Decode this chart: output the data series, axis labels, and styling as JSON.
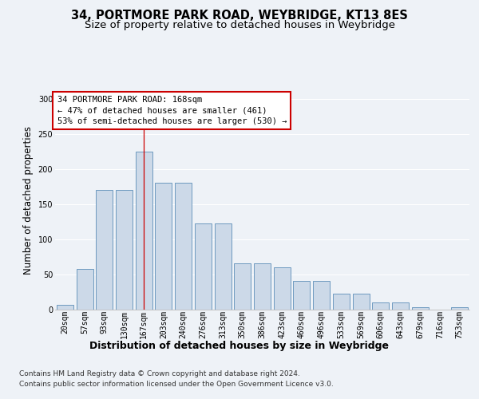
{
  "title1": "34, PORTMORE PARK ROAD, WEYBRIDGE, KT13 8ES",
  "title2": "Size of property relative to detached houses in Weybridge",
  "xlabel": "Distribution of detached houses by size in Weybridge",
  "ylabel": "Number of detached properties",
  "bar_labels": [
    "20sqm",
    "57sqm",
    "93sqm",
    "130sqm",
    "167sqm",
    "203sqm",
    "240sqm",
    "276sqm",
    "313sqm",
    "350sqm",
    "386sqm",
    "423sqm",
    "460sqm",
    "496sqm",
    "533sqm",
    "569sqm",
    "606sqm",
    "643sqm",
    "679sqm",
    "716sqm",
    "753sqm"
  ],
  "bar_values": [
    6,
    57,
    170,
    170,
    225,
    180,
    180,
    122,
    122,
    65,
    65,
    60,
    40,
    40,
    22,
    22,
    10,
    10,
    3,
    0,
    3
  ],
  "bar_color": "#ccd9e8",
  "bar_edge_color": "#5b8db8",
  "highlight_bar_index": 4,
  "highlight_line_color": "#cc0000",
  "ylim": [
    0,
    310
  ],
  "yticks": [
    0,
    50,
    100,
    150,
    200,
    250,
    300
  ],
  "annotation_text": "34 PORTMORE PARK ROAD: 168sqm\n← 47% of detached houses are smaller (461)\n53% of semi-detached houses are larger (530) →",
  "annotation_box_facecolor": "#ffffff",
  "annotation_box_edgecolor": "#cc0000",
  "footer_line1": "Contains HM Land Registry data © Crown copyright and database right 2024.",
  "footer_line2": "Contains public sector information licensed under the Open Government Licence v3.0.",
  "bg_color": "#eef2f7",
  "plot_bg_color": "#eef2f7",
  "grid_color": "#ffffff",
  "title1_fontsize": 10.5,
  "title2_fontsize": 9.5,
  "tick_fontsize": 7,
  "ylabel_fontsize": 8.5,
  "xlabel_fontsize": 9,
  "footer_fontsize": 6.5,
  "annotation_fontsize": 7.5
}
